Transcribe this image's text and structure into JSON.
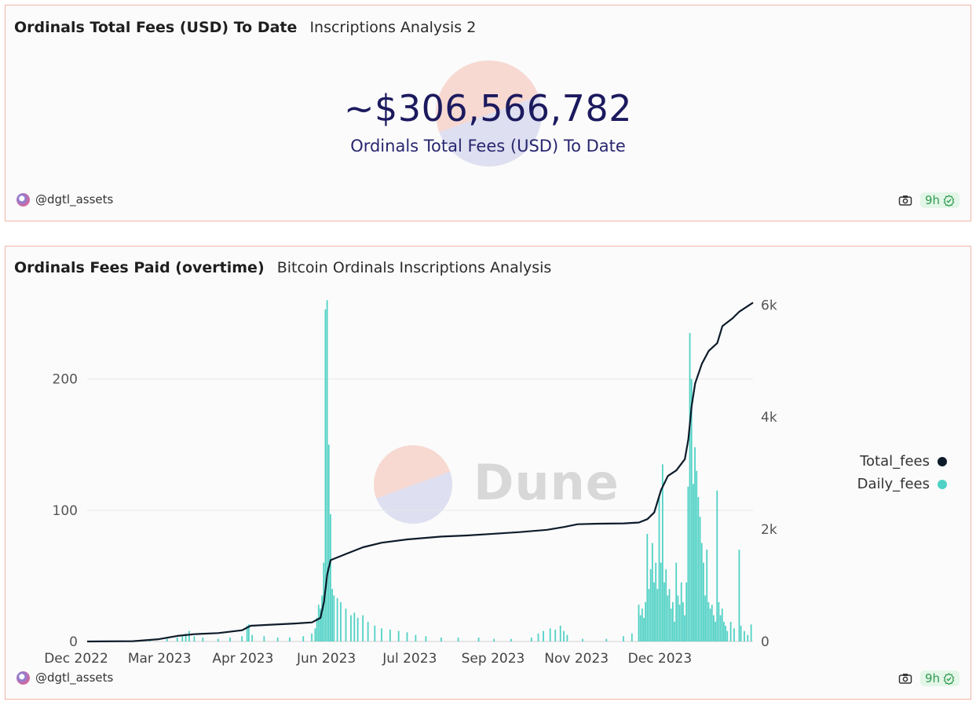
{
  "counter_card": {
    "title": "Ordinals Total Fees (USD) To Date",
    "subtitle": "Inscriptions Analysis 2",
    "value": "~$306,566,782",
    "label": "Ordinals Total Fees (USD) To Date",
    "author": "@dgtl_assets",
    "age": "9h"
  },
  "chart_card": {
    "title": "Ordinals Fees Paid (overtime)",
    "subtitle": "Bitcoin Ordinals Inscriptions Analysis",
    "author": "@dgtl_assets",
    "age": "9h",
    "watermark": "Dune"
  },
  "colors": {
    "total_fees": "#0d1b2a",
    "daily_fees": "#4fd1c5",
    "border": "#f1b5a6"
  },
  "chart_data": {
    "type": "bar",
    "x_tick_labels": [
      "Dec 2022",
      "Mar 2023",
      "Apr 2023",
      "Jun 2023",
      "Jul 2023",
      "Sep 2023",
      "Nov 2023",
      "Dec 2023"
    ],
    "x_range": [
      "2022-12-14",
      "2024-01-09"
    ],
    "y_left": {
      "ticks": [
        0,
        100,
        200
      ],
      "ylim": [
        0,
        265
      ]
    },
    "y_right": {
      "ticks": [
        0,
        2000,
        4000,
        6000
      ],
      "tick_labels": [
        "0",
        "2k",
        "4k",
        "6k"
      ],
      "ylim": [
        0,
        6200
      ]
    },
    "legend": {
      "position": "right",
      "items": [
        "Total_fees",
        "Daily_fees"
      ]
    },
    "grid": true,
    "series": [
      {
        "name": "Daily_fees",
        "type": "bar",
        "axis": "left",
        "points": [
          [
            "2023-01-20",
            1
          ],
          [
            "2023-01-30",
            2
          ],
          [
            "2023-02-05",
            3
          ],
          [
            "2023-02-08",
            5
          ],
          [
            "2023-02-10",
            6
          ],
          [
            "2023-02-12",
            8
          ],
          [
            "2023-02-15",
            4
          ],
          [
            "2023-02-20",
            3
          ],
          [
            "2023-03-01",
            2
          ],
          [
            "2023-03-08",
            3
          ],
          [
            "2023-03-15",
            4
          ],
          [
            "2023-03-18",
            12
          ],
          [
            "2023-03-19",
            13
          ],
          [
            "2023-03-21",
            5
          ],
          [
            "2023-03-28",
            4
          ],
          [
            "2023-04-05",
            3
          ],
          [
            "2023-04-12",
            3
          ],
          [
            "2023-04-20",
            4
          ],
          [
            "2023-04-25",
            6
          ],
          [
            "2023-04-27",
            10
          ],
          [
            "2023-04-28",
            18
          ],
          [
            "2023-04-29",
            28
          ],
          [
            "2023-04-30",
            25
          ],
          [
            "2023-05-01",
            35
          ],
          [
            "2023-05-02",
            60
          ],
          [
            "2023-05-03",
            253
          ],
          [
            "2023-05-04",
            260
          ],
          [
            "2023-05-05",
            150
          ],
          [
            "2023-05-06",
            97
          ],
          [
            "2023-05-07",
            40
          ],
          [
            "2023-05-08",
            35
          ],
          [
            "2023-05-10",
            33
          ],
          [
            "2023-05-12",
            30
          ],
          [
            "2023-05-15",
            25
          ],
          [
            "2023-05-18",
            20
          ],
          [
            "2023-05-20",
            22
          ],
          [
            "2023-05-22",
            18
          ],
          [
            "2023-05-25",
            20
          ],
          [
            "2023-05-28",
            15
          ],
          [
            "2023-06-01",
            12
          ],
          [
            "2023-06-05",
            10
          ],
          [
            "2023-06-10",
            9
          ],
          [
            "2023-06-15",
            8
          ],
          [
            "2023-06-20",
            7
          ],
          [
            "2023-06-25",
            5
          ],
          [
            "2023-07-01",
            4
          ],
          [
            "2023-07-10",
            3
          ],
          [
            "2023-07-20",
            3
          ],
          [
            "2023-08-01",
            3
          ],
          [
            "2023-08-10",
            2
          ],
          [
            "2023-08-20",
            2
          ],
          [
            "2023-09-01",
            3
          ],
          [
            "2023-09-05",
            6
          ],
          [
            "2023-09-08",
            8
          ],
          [
            "2023-09-12",
            10
          ],
          [
            "2023-09-15",
            9
          ],
          [
            "2023-09-18",
            12
          ],
          [
            "2023-09-20",
            8
          ],
          [
            "2023-09-22",
            5
          ],
          [
            "2023-10-01",
            2
          ],
          [
            "2023-10-15",
            2
          ],
          [
            "2023-10-25",
            4
          ],
          [
            "2023-10-30",
            6
          ],
          [
            "2023-11-03",
            28
          ],
          [
            "2023-11-04",
            20
          ],
          [
            "2023-11-05",
            25
          ],
          [
            "2023-11-06",
            18
          ],
          [
            "2023-11-07",
            30
          ],
          [
            "2023-11-08",
            82
          ],
          [
            "2023-11-09",
            40
          ],
          [
            "2023-11-10",
            55
          ],
          [
            "2023-11-11",
            75
          ],
          [
            "2023-11-12",
            45
          ],
          [
            "2023-11-13",
            60
          ],
          [
            "2023-11-14",
            40
          ],
          [
            "2023-11-15",
            110
          ],
          [
            "2023-11-16",
            60
          ],
          [
            "2023-11-17",
            135
          ],
          [
            "2023-11-18",
            45
          ],
          [
            "2023-11-19",
            55
          ],
          [
            "2023-11-20",
            35
          ],
          [
            "2023-11-21",
            40
          ],
          [
            "2023-11-22",
            25
          ],
          [
            "2023-11-23",
            30
          ],
          [
            "2023-11-24",
            15
          ],
          [
            "2023-11-25",
            60
          ],
          [
            "2023-11-26",
            35
          ],
          [
            "2023-11-27",
            28
          ],
          [
            "2023-11-28",
            45
          ],
          [
            "2023-11-29",
            30
          ],
          [
            "2023-11-30",
            20
          ],
          [
            "2023-12-01",
            45
          ],
          [
            "2023-12-02",
            118
          ],
          [
            "2023-12-03",
            235
          ],
          [
            "2023-12-04",
            200
          ],
          [
            "2023-12-05",
            120
          ],
          [
            "2023-12-06",
            148
          ],
          [
            "2023-12-07",
            130
          ],
          [
            "2023-12-08",
            110
          ],
          [
            "2023-12-09",
            95
          ],
          [
            "2023-12-10",
            75
          ],
          [
            "2023-12-11",
            60
          ],
          [
            "2023-12-12",
            35
          ],
          [
            "2023-12-13",
            70
          ],
          [
            "2023-12-14",
            30
          ],
          [
            "2023-12-15",
            25
          ],
          [
            "2023-12-16",
            28
          ],
          [
            "2023-12-17",
            20
          ],
          [
            "2023-12-18",
            15
          ],
          [
            "2023-12-19",
            115
          ],
          [
            "2023-12-20",
            30
          ],
          [
            "2023-12-21",
            20
          ],
          [
            "2023-12-22",
            25
          ],
          [
            "2023-12-23",
            15
          ],
          [
            "2023-12-24",
            12
          ],
          [
            "2023-12-25",
            8
          ],
          [
            "2023-12-27",
            15
          ],
          [
            "2023-12-29",
            10
          ],
          [
            "2024-01-01",
            70
          ],
          [
            "2024-01-02",
            12
          ],
          [
            "2024-01-04",
            8
          ],
          [
            "2024-01-06",
            5
          ],
          [
            "2024-01-08",
            13
          ]
        ]
      },
      {
        "name": "Total_fees",
        "type": "line",
        "axis": "right",
        "points": [
          [
            "2022-12-14",
            0
          ],
          [
            "2023-01-10",
            5
          ],
          [
            "2023-01-25",
            40
          ],
          [
            "2023-02-05",
            100
          ],
          [
            "2023-02-15",
            130
          ],
          [
            "2023-03-01",
            150
          ],
          [
            "2023-03-15",
            200
          ],
          [
            "2023-03-20",
            280
          ],
          [
            "2023-04-01",
            300
          ],
          [
            "2023-04-15",
            320
          ],
          [
            "2023-04-25",
            340
          ],
          [
            "2023-04-30",
            420
          ],
          [
            "2023-05-02",
            700
          ],
          [
            "2023-05-04",
            1200
          ],
          [
            "2023-05-06",
            1450
          ],
          [
            "2023-05-15",
            1560
          ],
          [
            "2023-05-25",
            1680
          ],
          [
            "2023-06-05",
            1760
          ],
          [
            "2023-06-20",
            1820
          ],
          [
            "2023-07-10",
            1870
          ],
          [
            "2023-07-25",
            1890
          ],
          [
            "2023-08-10",
            1920
          ],
          [
            "2023-08-25",
            1950
          ],
          [
            "2023-09-10",
            1990
          ],
          [
            "2023-09-20",
            2040
          ],
          [
            "2023-09-28",
            2090
          ],
          [
            "2023-10-10",
            2100
          ],
          [
            "2023-10-25",
            2105
          ],
          [
            "2023-11-03",
            2120
          ],
          [
            "2023-11-08",
            2180
          ],
          [
            "2023-11-12",
            2300
          ],
          [
            "2023-11-16",
            2700
          ],
          [
            "2023-11-20",
            2950
          ],
          [
            "2023-11-25",
            3050
          ],
          [
            "2023-11-30",
            3250
          ],
          [
            "2023-12-02",
            3600
          ],
          [
            "2023-12-04",
            4200
          ],
          [
            "2023-12-06",
            4600
          ],
          [
            "2023-12-10",
            4950
          ],
          [
            "2023-12-14",
            5180
          ],
          [
            "2023-12-19",
            5320
          ],
          [
            "2023-12-22",
            5620
          ],
          [
            "2023-12-28",
            5760
          ],
          [
            "2024-01-01",
            5880
          ],
          [
            "2024-01-09",
            6040
          ]
        ]
      }
    ]
  }
}
